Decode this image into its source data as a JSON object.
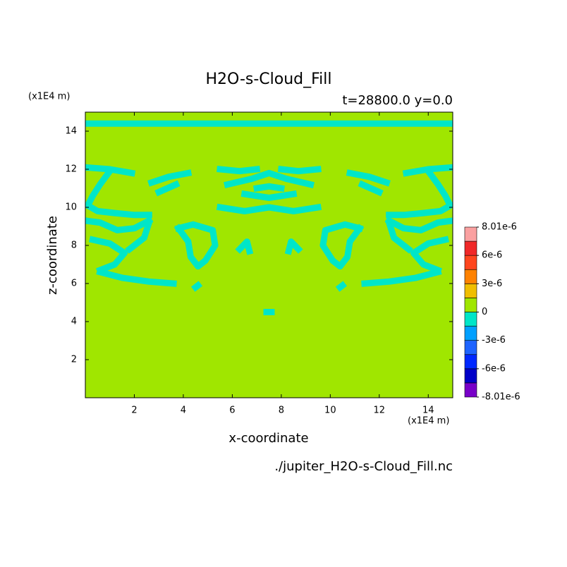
{
  "chart_data": {
    "type": "contour",
    "title": "H2O-s-Cloud_Fill",
    "subtitle": "t=28800.0 y=0.0",
    "x_label": "x-coordinate",
    "y_label": "z-coordinate",
    "x_unit": "(x1E4 m)",
    "y_unit": "(x1E4 m)",
    "footer": "./jupiter_H2O-s-Cloud_Fill.nc",
    "xlim": [
      0,
      15
    ],
    "ylim": [
      0,
      15
    ],
    "xticks": [
      2,
      4,
      6,
      8,
      10,
      12,
      14
    ],
    "yticks": [
      2,
      4,
      6,
      8,
      10,
      12,
      14
    ],
    "background_value": 1e-06,
    "contours": [
      {
        "value": -1e-06,
        "points": [
          [
            0,
            14.4
          ],
          [
            15,
            14.4
          ]
        ]
      },
      {
        "value": -1e-06,
        "points": [
          [
            0,
            12.1
          ],
          [
            1,
            12
          ],
          [
            1.9,
            11.8
          ]
        ]
      },
      {
        "value": -1e-06,
        "points": [
          [
            1,
            11.9
          ],
          [
            0.6,
            11.2
          ],
          [
            0.3,
            10.6
          ],
          [
            0.1,
            10.1
          ],
          [
            0.5,
            9.8
          ],
          [
            1.2,
            9.7
          ],
          [
            2,
            9.6
          ],
          [
            2.6,
            9.6
          ]
        ]
      },
      {
        "value": -1e-06,
        "points": [
          [
            0,
            9.3
          ],
          [
            0.6,
            9.2
          ],
          [
            1.3,
            8.8
          ],
          [
            2,
            8.9
          ],
          [
            2.6,
            9.3
          ]
        ]
      },
      {
        "value": -1e-06,
        "points": [
          [
            0.3,
            8.3
          ],
          [
            1,
            8.1
          ],
          [
            1.6,
            7.6
          ],
          [
            1.2,
            7
          ],
          [
            0.6,
            6.7
          ]
        ]
      },
      {
        "value": -1e-06,
        "points": [
          [
            0.6,
            6.6
          ],
          [
            1.5,
            6.3
          ],
          [
            2.6,
            6.1
          ],
          [
            3.6,
            6
          ]
        ]
      },
      {
        "value": -1e-06,
        "points": [
          [
            1.8,
            7.8
          ],
          [
            2.4,
            8.4
          ],
          [
            2.6,
            9.2
          ]
        ]
      },
      {
        "value": -1e-06,
        "points": [
          [
            2.7,
            11.3
          ],
          [
            3.4,
            11.6
          ],
          [
            4.2,
            11.8
          ]
        ]
      },
      {
        "value": -1e-06,
        "points": [
          [
            3,
            10.8
          ],
          [
            3.7,
            11.2
          ]
        ]
      },
      {
        "value": -1e-06,
        "points": [
          [
            3.8,
            8.9
          ],
          [
            4.4,
            9.1
          ],
          [
            5.2,
            8.8
          ],
          [
            5.3,
            8
          ],
          [
            4.9,
            7.2
          ],
          [
            4.6,
            6.9
          ],
          [
            4.3,
            7.4
          ],
          [
            4.2,
            8.2
          ],
          [
            3.8,
            8.9
          ]
        ]
      },
      {
        "value": -1e-06,
        "points": [
          [
            5.5,
            12
          ],
          [
            6.3,
            11.9
          ],
          [
            7,
            12
          ]
        ]
      },
      {
        "value": -1e-06,
        "points": [
          [
            8,
            12
          ],
          [
            8.7,
            11.9
          ],
          [
            9.5,
            12
          ]
        ]
      },
      {
        "value": -1e-06,
        "points": [
          [
            5.8,
            11.2
          ],
          [
            6.8,
            11.5
          ],
          [
            7.5,
            11.8
          ],
          [
            8.2,
            11.5
          ],
          [
            9.2,
            11.2
          ]
        ]
      },
      {
        "value": -1e-06,
        "points": [
          [
            5.5,
            10
          ],
          [
            6.5,
            9.8
          ],
          [
            7.5,
            10
          ],
          [
            8.5,
            9.8
          ],
          [
            9.5,
            10
          ]
        ]
      },
      {
        "value": -1e-06,
        "points": [
          [
            6.5,
            10.7
          ],
          [
            7.5,
            10.5
          ],
          [
            8.5,
            10.7
          ]
        ]
      },
      {
        "value": -1e-06,
        "points": [
          [
            7,
            11
          ],
          [
            7.5,
            11.1
          ],
          [
            8,
            11
          ]
        ]
      },
      {
        "value": -1e-06,
        "points": [
          [
            6.3,
            7.8
          ],
          [
            6.6,
            8.2
          ],
          [
            6.7,
            7.7
          ]
        ]
      },
      {
        "value": -1e-06,
        "points": [
          [
            8.7,
            7.8
          ],
          [
            8.4,
            8.2
          ],
          [
            8.3,
            7.7
          ]
        ]
      },
      {
        "value": -1e-06,
        "points": [
          [
            4.5,
            5.8
          ],
          [
            4.6,
            5.9
          ]
        ]
      },
      {
        "value": -1e-06,
        "points": [
          [
            10.4,
            5.8
          ],
          [
            10.5,
            5.9
          ]
        ]
      },
      {
        "value": -1e-06,
        "points": [
          [
            7.4,
            4.5
          ],
          [
            7.6,
            4.5
          ]
        ]
      },
      {
        "value": -1e-06,
        "points": [
          [
            15,
            12.1
          ],
          [
            14,
            12
          ],
          [
            13.1,
            11.8
          ]
        ]
      },
      {
        "value": -1e-06,
        "points": [
          [
            14,
            11.9
          ],
          [
            14.4,
            11.2
          ],
          [
            14.7,
            10.6
          ],
          [
            14.9,
            10.1
          ],
          [
            14.5,
            9.8
          ],
          [
            13.8,
            9.7
          ],
          [
            13,
            9.6
          ],
          [
            12.4,
            9.6
          ]
        ]
      },
      {
        "value": -1e-06,
        "points": [
          [
            15,
            9.3
          ],
          [
            14.4,
            9.2
          ],
          [
            13.7,
            8.8
          ],
          [
            13,
            8.9
          ],
          [
            12.4,
            9.3
          ]
        ]
      },
      {
        "value": -1e-06,
        "points": [
          [
            14.7,
            8.3
          ],
          [
            14,
            8.1
          ],
          [
            13.4,
            7.6
          ],
          [
            13.8,
            7
          ],
          [
            14.4,
            6.7
          ]
        ]
      },
      {
        "value": -1e-06,
        "points": [
          [
            14.4,
            6.6
          ],
          [
            13.5,
            6.3
          ],
          [
            12.4,
            6.1
          ],
          [
            11.4,
            6
          ]
        ]
      },
      {
        "value": -1e-06,
        "points": [
          [
            13.2,
            7.8
          ],
          [
            12.6,
            8.4
          ],
          [
            12.4,
            9.2
          ]
        ]
      },
      {
        "value": -1e-06,
        "points": [
          [
            12.3,
            11.3
          ],
          [
            11.6,
            11.6
          ],
          [
            10.8,
            11.8
          ]
        ]
      },
      {
        "value": -1e-06,
        "points": [
          [
            12,
            10.8
          ],
          [
            11.3,
            11.2
          ]
        ]
      },
      {
        "value": -1e-06,
        "points": [
          [
            11.2,
            8.9
          ],
          [
            10.6,
            9.1
          ],
          [
            9.8,
            8.8
          ],
          [
            9.7,
            8
          ],
          [
            10.1,
            7.2
          ],
          [
            10.4,
            6.9
          ],
          [
            10.7,
            7.4
          ],
          [
            10.8,
            8.2
          ],
          [
            11.2,
            8.9
          ]
        ]
      }
    ],
    "colorbar": {
      "levels": [
        -8.01e-06,
        -7e-06,
        -6e-06,
        -4.5e-06,
        -3e-06,
        -1.5e-06,
        0,
        1.5e-06,
        3e-06,
        4.5e-06,
        6e-06,
        7e-06,
        8.01e-06
      ],
      "colors": [
        "#7800c8",
        "#0000c8",
        "#0028ff",
        "#1e64ff",
        "#00a0ff",
        "#00e6c8",
        "#a0e600",
        "#f0be00",
        "#ff8200",
        "#ff461e",
        "#f02828",
        "#fa a0a0"
      ],
      "ticks": [
        {
          "value": 8.01e-06,
          "label": "8.01e-6"
        },
        {
          "value": 6e-06,
          "label": "6e-6"
        },
        {
          "value": 3e-06,
          "label": "3e-6"
        },
        0,
        {
          "value": -3e-06,
          "label": "-3e-6"
        },
        {
          "value": -6e-06,
          "label": "-6e-6"
        },
        {
          "value": -8.01e-06,
          "label": "-8.01e-6"
        }
      ]
    }
  }
}
